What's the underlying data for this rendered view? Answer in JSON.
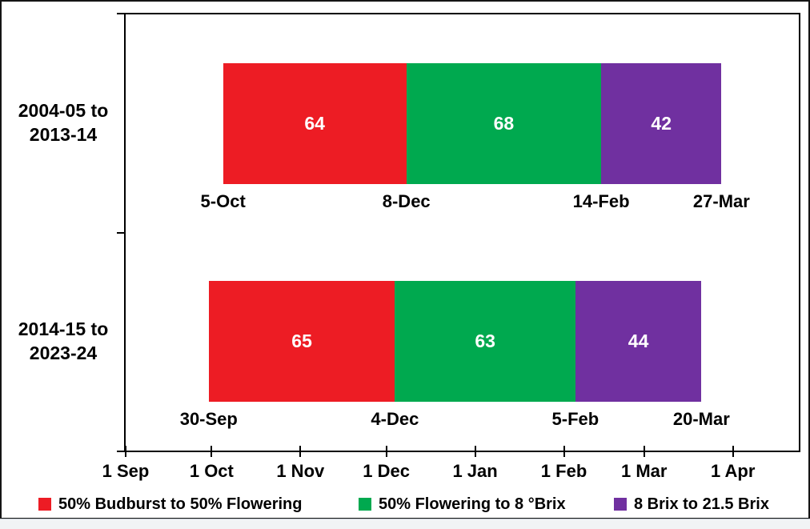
{
  "chart_data": {
    "type": "bar",
    "subtype": "horizontal-stacked-timeline",
    "title": "",
    "xlabel": "",
    "ylabel": "",
    "grid": false,
    "legend_position": "bottom",
    "value_label_color": "#FFFFFF",
    "categories": [
      "2004-05 to 2013-14",
      "2014-15 to 2023-24"
    ],
    "series": [
      {
        "name": "50% Budburst to 50% Flowering",
        "color": "#ED1C24",
        "values": [
          64,
          65
        ]
      },
      {
        "name": "50% Flowering to 8 °Brix",
        "color": "#00A94F",
        "values": [
          68,
          63
        ]
      },
      {
        "name": "8 Brix to 21.5 Brix",
        "color": "#7030A0",
        "values": [
          42,
          44
        ]
      }
    ],
    "bars": [
      {
        "category_lines": [
          "2004-05 to",
          "2013-14"
        ],
        "start_date_label": "5-Oct",
        "start_day_offset": 34,
        "segments": [
          {
            "days": 64,
            "end_label": "8-Dec"
          },
          {
            "days": 68,
            "end_label": "14-Feb"
          },
          {
            "days": 42,
            "end_label": "27-Mar"
          }
        ]
      },
      {
        "category_lines": [
          "2014-15 to",
          "2023-24"
        ],
        "start_date_label": "30-Sep",
        "start_day_offset": 29,
        "segments": [
          {
            "days": 65,
            "end_label": "4-Dec"
          },
          {
            "days": 63,
            "end_label": "5-Feb"
          },
          {
            "days": 44,
            "end_label": "20-Mar"
          }
        ]
      }
    ],
    "x_axis": {
      "range_days": [
        0,
        235
      ],
      "ticks": [
        {
          "label": "1 Sep",
          "day": 0
        },
        {
          "label": "1 Oct",
          "day": 30
        },
        {
          "label": "1 Nov",
          "day": 61
        },
        {
          "label": "1 Dec",
          "day": 91
        },
        {
          "label": "1 Jan",
          "day": 122
        },
        {
          "label": "1 Feb",
          "day": 153
        },
        {
          "label": "1 Mar",
          "day": 181
        },
        {
          "label": "1 Apr",
          "day": 212
        }
      ]
    }
  },
  "legend": {
    "items": [
      {
        "label": "50% Budburst to 50% Flowering",
        "color": "#ED1C24"
      },
      {
        "label": "50% Flowering to 8 °Brix",
        "color": "#00A94F"
      },
      {
        "label": "8 Brix to 21.5 Brix",
        "color": "#7030A0"
      }
    ]
  }
}
